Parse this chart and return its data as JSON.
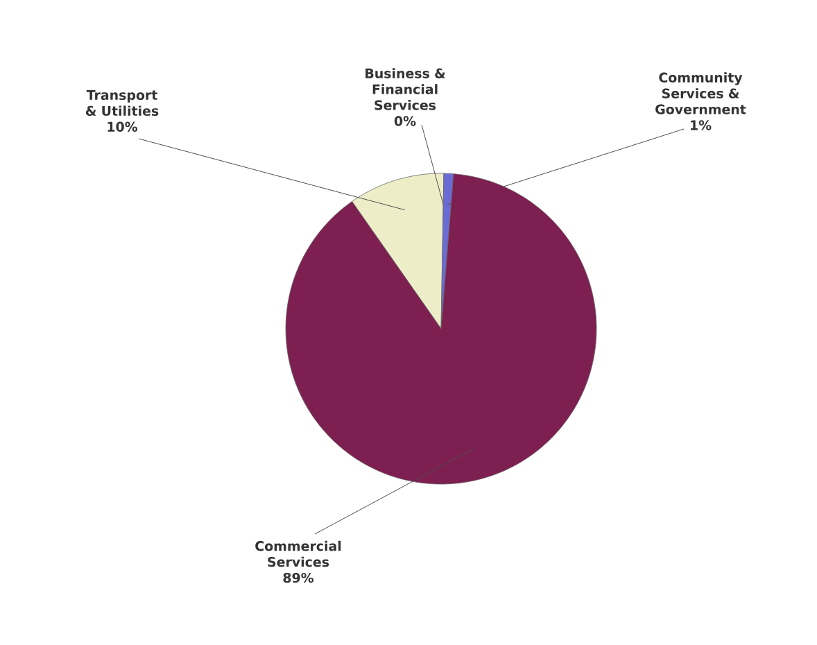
{
  "chart_data": {
    "type": "pie",
    "categories": [
      "Transport & Utilities",
      "Business & Financial Services",
      "Community Services & Government",
      "Commercial Services"
    ],
    "values": [
      10,
      0,
      1,
      89
    ],
    "colors": [
      "#ededc8",
      "#9a9ab8",
      "#6b6bd6",
      "#7e1f52"
    ],
    "value_labels": [
      "10%",
      "0%",
      "1%",
      "89%"
    ]
  }
}
